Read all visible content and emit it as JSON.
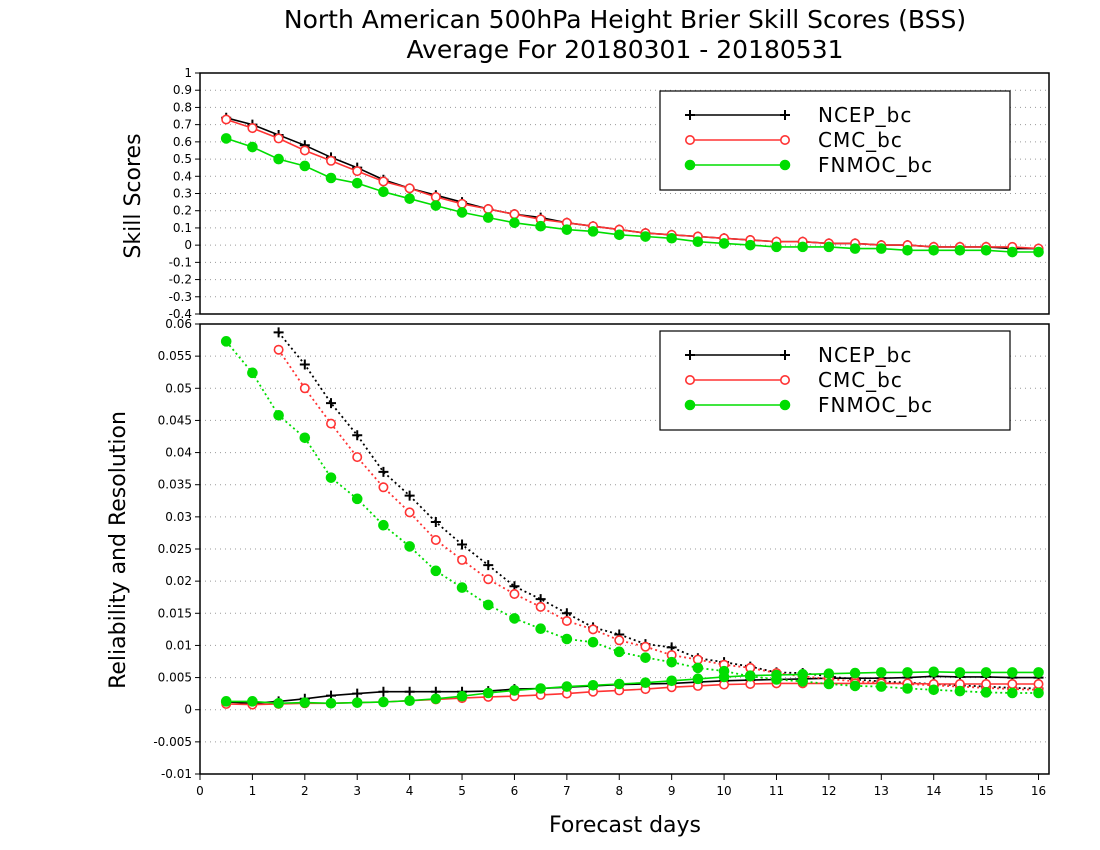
{
  "chart_data": [
    {
      "type": "line",
      "title": "North American 500hPa Height Brier Skill Scores (BSS)",
      "subtitle": "Average For 20180301 - 20180531",
      "ylabel": "Skill Scores",
      "xlabel": "",
      "xlim": [
        0,
        16.2
      ],
      "ylim": [
        -0.4,
        1
      ],
      "yticks": [
        -0.4,
        -0.3,
        -0.2,
        -0.1,
        0,
        0.1,
        0.2,
        0.3,
        0.4,
        0.5,
        0.6,
        0.7,
        0.8,
        0.9,
        1
      ],
      "ytick_labels": [
        "-0.4",
        "-0.3",
        "-0.2",
        "-0.1",
        "0",
        "0.1",
        "0.2",
        "0.3",
        "0.4",
        "0.5",
        "0.6",
        "0.7",
        "0.8",
        "0.9",
        "1"
      ],
      "grid": true,
      "legend_position": "top-right",
      "x": [
        0.5,
        1,
        1.5,
        2,
        2.5,
        3,
        3.5,
        4,
        4.5,
        5,
        5.5,
        6,
        6.5,
        7,
        7.5,
        8,
        8.5,
        9,
        9.5,
        10,
        10.5,
        11,
        11.5,
        12,
        12.5,
        13,
        13.5,
        14,
        14.5,
        15,
        15.5,
        16
      ],
      "series": [
        {
          "name": "NCEP_bc",
          "color": "#000000",
          "marker": "plus",
          "values": [
            0.74,
            0.7,
            0.64,
            0.58,
            0.51,
            0.45,
            0.38,
            0.33,
            0.29,
            0.25,
            0.21,
            0.18,
            0.16,
            0.13,
            0.11,
            0.09,
            0.07,
            0.06,
            0.05,
            0.04,
            0.03,
            0.02,
            0.02,
            0.01,
            0.01,
            0.0,
            0.0,
            -0.01,
            -0.01,
            -0.01,
            -0.02,
            -0.02
          ]
        },
        {
          "name": "CMC_bc",
          "color": "#ff3333",
          "marker": "open-circle",
          "values": [
            0.73,
            0.68,
            0.62,
            0.55,
            0.49,
            0.43,
            0.37,
            0.33,
            0.28,
            0.24,
            0.21,
            0.18,
            0.15,
            0.13,
            0.11,
            0.09,
            0.07,
            0.06,
            0.05,
            0.04,
            0.03,
            0.02,
            0.02,
            0.01,
            0.01,
            0.0,
            0.0,
            -0.01,
            -0.01,
            -0.01,
            -0.01,
            -0.02
          ]
        },
        {
          "name": "FNMOC_bc",
          "color": "#00dd00",
          "marker": "filled-circle",
          "values": [
            0.62,
            0.57,
            0.5,
            0.46,
            0.39,
            0.36,
            0.31,
            0.27,
            0.23,
            0.19,
            0.16,
            0.13,
            0.11,
            0.09,
            0.08,
            0.06,
            0.05,
            0.04,
            0.02,
            0.01,
            0.0,
            -0.01,
            -0.01,
            -0.01,
            -0.02,
            -0.02,
            -0.03,
            -0.03,
            -0.03,
            -0.03,
            -0.04,
            -0.04
          ]
        }
      ]
    },
    {
      "type": "line",
      "title": "",
      "ylabel": "Reliability and Resolution",
      "xlabel": "Forecast days",
      "xlim": [
        0,
        16.2
      ],
      "ylim": [
        -0.01,
        0.06
      ],
      "xticks": [
        0,
        1,
        2,
        3,
        4,
        5,
        6,
        7,
        8,
        9,
        10,
        11,
        12,
        13,
        14,
        15,
        16
      ],
      "xtick_labels": [
        "0",
        "1",
        "2",
        "3",
        "4",
        "5",
        "6",
        "7",
        "8",
        "9",
        "10",
        "11",
        "12",
        "13",
        "14",
        "15",
        "16"
      ],
      "yticks": [
        -0.01,
        -0.005,
        0,
        0.005,
        0.01,
        0.015,
        0.02,
        0.025,
        0.03,
        0.035,
        0.04,
        0.045,
        0.05,
        0.055,
        0.06
      ],
      "ytick_labels": [
        "-0.01",
        "-0.005",
        "0",
        "0.005",
        "0.01",
        "0.015",
        "0.02",
        "0.025",
        "0.03",
        "0.035",
        "0.04",
        "0.045",
        "0.05",
        "0.055",
        "0.06"
      ],
      "grid": true,
      "legend_position": "top-right",
      "x": [
        0.5,
        1,
        1.5,
        2,
        2.5,
        3,
        3.5,
        4,
        4.5,
        5,
        5.5,
        6,
        6.5,
        7,
        7.5,
        8,
        8.5,
        9,
        9.5,
        10,
        10.5,
        11,
        11.5,
        12,
        12.5,
        13,
        13.5,
        14,
        14.5,
        15,
        15.5,
        16
      ],
      "series": [
        {
          "name": "NCEP_bc",
          "color": "#000000",
          "marker": "plus",
          "role": "reliability",
          "line": "dotted",
          "values": [
            null,
            null,
            0.0587,
            0.0537,
            0.0477,
            0.0427,
            0.037,
            0.0333,
            0.0292,
            0.0257,
            0.0225,
            0.0192,
            0.0172,
            0.015,
            0.0128,
            0.0117,
            0.0102,
            0.0097,
            0.008,
            0.0074,
            0.0067,
            0.0058,
            0.0057,
            0.0052,
            0.0047,
            0.0044,
            0.0042,
            0.004,
            0.0038,
            0.0036,
            0.0034,
            0.0033
          ]
        },
        {
          "name": "NCEP_bc",
          "color": "#000000",
          "marker": "plus",
          "role": "resolution",
          "line": "solid",
          "values": [
            0.0012,
            0.001,
            0.0013,
            0.0017,
            0.0022,
            0.0025,
            0.0028,
            0.0028,
            0.0028,
            0.0028,
            0.0029,
            0.0032,
            0.0033,
            0.0035,
            0.0037,
            0.0039,
            0.004,
            0.0041,
            0.0043,
            0.0045,
            0.0046,
            0.0047,
            0.0048,
            0.0049,
            0.0049,
            0.0049,
            0.005,
            0.0052,
            0.0051,
            0.0051,
            0.005,
            0.005
          ]
        },
        {
          "name": "CMC_bc",
          "color": "#ff3333",
          "marker": "open-circle",
          "role": "reliability",
          "line": "dotted",
          "values": [
            null,
            null,
            0.056,
            0.05,
            0.0445,
            0.0393,
            0.0346,
            0.0307,
            0.0264,
            0.0233,
            0.0203,
            0.018,
            0.016,
            0.0138,
            0.0125,
            0.0108,
            0.0098,
            0.0085,
            0.0078,
            0.007,
            0.0065,
            0.0057,
            0.0052,
            0.0048,
            0.0044,
            0.0042,
            0.004,
            0.0038,
            0.0036,
            0.0034,
            0.0032,
            0.0031
          ]
        },
        {
          "name": "CMC_bc",
          "color": "#ff3333",
          "marker": "open-circle",
          "role": "resolution",
          "line": "solid",
          "values": [
            0.0009,
            0.0008,
            0.0009,
            0.001,
            0.001,
            0.0011,
            0.0012,
            0.0014,
            0.0016,
            0.0018,
            0.002,
            0.0021,
            0.0023,
            0.0025,
            0.0028,
            0.003,
            0.0032,
            0.0035,
            0.0037,
            0.0039,
            0.004,
            0.0041,
            0.0041,
            0.0041,
            0.0041,
            0.0041,
            0.0041,
            0.004,
            0.004,
            0.004,
            0.004,
            0.004
          ]
        },
        {
          "name": "FNMOC_bc",
          "color": "#00dd00",
          "marker": "filled-circle",
          "role": "reliability",
          "line": "dotted",
          "values": [
            0.0573,
            0.0524,
            0.0458,
            0.0423,
            0.0361,
            0.0328,
            0.0287,
            0.0254,
            0.0216,
            0.019,
            0.0163,
            0.0142,
            0.0126,
            0.011,
            0.0105,
            0.009,
            0.0081,
            0.0074,
            0.0065,
            0.006,
            0.0052,
            0.0047,
            0.0044,
            0.004,
            0.0037,
            0.0036,
            0.0033,
            0.0031,
            0.0029,
            0.0027,
            0.0026,
            0.0026
          ]
        },
        {
          "name": "FNMOC_bc",
          "color": "#00dd00",
          "marker": "filled-circle",
          "role": "resolution",
          "line": "solid",
          "values": [
            0.0013,
            0.0013,
            0.001,
            0.0011,
            0.001,
            0.0011,
            0.0012,
            0.0014,
            0.0017,
            0.0021,
            0.0026,
            0.003,
            0.0033,
            0.0036,
            0.0038,
            0.004,
            0.0042,
            0.0045,
            0.0048,
            0.0051,
            0.0053,
            0.0054,
            0.0055,
            0.0056,
            0.0057,
            0.0058,
            0.0058,
            0.0059,
            0.0058,
            0.0058,
            0.0058,
            0.0058
          ]
        }
      ]
    }
  ],
  "legend": {
    "entries": [
      {
        "name": "NCEP_bc",
        "color": "#000000",
        "marker": "plus"
      },
      {
        "name": "CMC_bc",
        "color": "#ff3333",
        "marker": "open-circle"
      },
      {
        "name": "FNMOC_bc",
        "color": "#00dd00",
        "marker": "filled-circle"
      }
    ]
  }
}
